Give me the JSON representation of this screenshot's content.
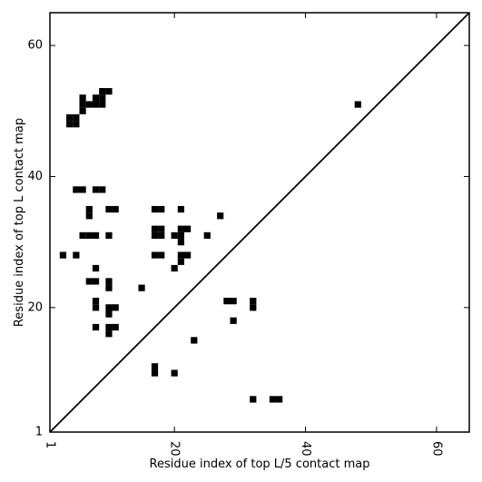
{
  "chart_data": {
    "type": "heatmap",
    "title": "",
    "xlabel": "Residue index of top L/5 contact map",
    "ylabel": "Residue index of top L contact map",
    "xlim": [
      1,
      65
    ],
    "ylim": [
      1,
      65
    ],
    "ticks": {
      "x": [
        {
          "value": 1,
          "label": "1"
        },
        {
          "value": 20,
          "label": "20"
        },
        {
          "value": 40,
          "label": "40"
        },
        {
          "value": 60,
          "label": "60"
        }
      ],
      "y": [
        {
          "value": 1,
          "label": "1"
        },
        {
          "value": 20,
          "label": "20"
        },
        {
          "value": 40,
          "label": "40"
        },
        {
          "value": 60,
          "label": "60"
        }
      ]
    },
    "diagonal": true,
    "grid": false,
    "cell_color": "#000000",
    "upper_triangle_contacts": [
      [
        4,
        48
      ],
      [
        4,
        49
      ],
      [
        5,
        48
      ],
      [
        5,
        49
      ],
      [
        6,
        50
      ],
      [
        6,
        51
      ],
      [
        6,
        52
      ],
      [
        7,
        51
      ],
      [
        8,
        51
      ],
      [
        8,
        52
      ],
      [
        9,
        51
      ],
      [
        9,
        52
      ],
      [
        9,
        53
      ],
      [
        10,
        53
      ],
      [
        5,
        38
      ],
      [
        6,
        38
      ],
      [
        8,
        38
      ],
      [
        9,
        38
      ],
      [
        7,
        34
      ],
      [
        7,
        35
      ],
      [
        6,
        31
      ],
      [
        7,
        31
      ],
      [
        8,
        31
      ],
      [
        3,
        28
      ],
      [
        5,
        28
      ],
      [
        8,
        26
      ],
      [
        7,
        24
      ],
      [
        8,
        24
      ],
      [
        8,
        20
      ],
      [
        8,
        21
      ],
      [
        8,
        17
      ],
      [
        10,
        35
      ],
      [
        11,
        35
      ],
      [
        10,
        31
      ],
      [
        10,
        23
      ],
      [
        10,
        24
      ],
      [
        10,
        19
      ],
      [
        10,
        20
      ],
      [
        11,
        20
      ],
      [
        10,
        16
      ],
      [
        10,
        17
      ],
      [
        11,
        17
      ],
      [
        15,
        23
      ],
      [
        17,
        35
      ],
      [
        18,
        35
      ],
      [
        17,
        31
      ],
      [
        17,
        32
      ],
      [
        18,
        31
      ],
      [
        18,
        32
      ],
      [
        17,
        28
      ],
      [
        18,
        28
      ],
      [
        21,
        35
      ],
      [
        20,
        31
      ],
      [
        21,
        30
      ],
      [
        21,
        31
      ],
      [
        21,
        32
      ],
      [
        22,
        32
      ],
      [
        21,
        27
      ],
      [
        21,
        28
      ],
      [
        22,
        28
      ],
      [
        20,
        26
      ],
      [
        25,
        31
      ],
      [
        27,
        34
      ],
      [
        28,
        21
      ],
      [
        29,
        21
      ],
      [
        29,
        18
      ],
      [
        32,
        20
      ],
      [
        32,
        21
      ],
      [
        23,
        15
      ],
      [
        48,
        51
      ]
    ],
    "lower_triangle_contacts": [
      [
        17,
        10
      ],
      [
        17,
        11
      ],
      [
        20,
        10
      ],
      [
        32,
        6
      ],
      [
        35,
        6
      ],
      [
        36,
        6
      ]
    ]
  }
}
